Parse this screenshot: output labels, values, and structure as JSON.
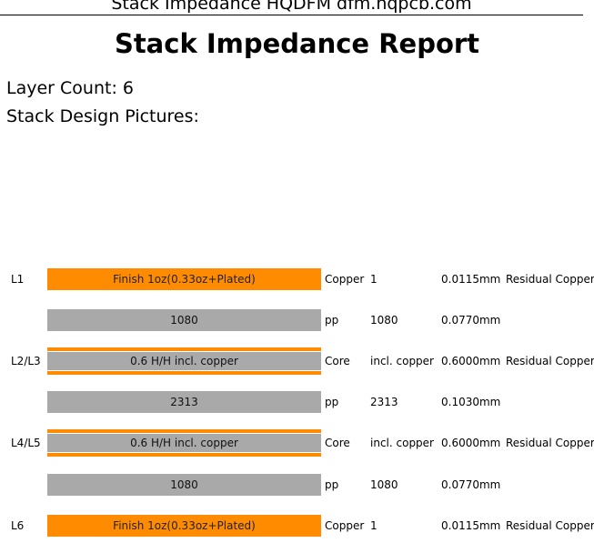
{
  "header": {
    "site_line": "Stack Impedance HQDFM dfm.hqpcb.com"
  },
  "report": {
    "title": "Stack Impedance Report",
    "layer_count": "Layer Count: 6",
    "pictures_label": "Stack Design Pictures:"
  },
  "stack": [
    {
      "label": "L1",
      "kind": "copper",
      "bar_text": "Finish 1oz(0.33oz+Plated)",
      "type": "Copper",
      "spec": "1",
      "thickness": "0.0115mm",
      "residual": "Residual Copper"
    },
    {
      "label": "",
      "kind": "pp",
      "bar_text": "1080",
      "type": "pp",
      "spec": "1080",
      "thickness": "0.0770mm",
      "residual": ""
    },
    {
      "label": "L2/L3",
      "kind": "core",
      "bar_text": "0.6 H/H incl. copper",
      "type": "Core",
      "spec": "incl. copper",
      "thickness": "0.6000mm",
      "residual": "Residual Copper"
    },
    {
      "label": "",
      "kind": "pp",
      "bar_text": "2313",
      "type": "pp",
      "spec": "2313",
      "thickness": "0.1030mm",
      "residual": ""
    },
    {
      "label": "L4/L5",
      "kind": "core",
      "bar_text": "0.6 H/H incl. copper",
      "type": "Core",
      "spec": "incl. copper",
      "thickness": "0.6000mm",
      "residual": "Residual Copper"
    },
    {
      "label": "",
      "kind": "pp",
      "bar_text": "1080",
      "type": "pp",
      "spec": "1080",
      "thickness": "0.0770mm",
      "residual": ""
    },
    {
      "label": "L6",
      "kind": "copper",
      "bar_text": "Finish 1oz(0.33oz+Plated)",
      "type": "Copper",
      "spec": "1",
      "thickness": "0.0115mm",
      "residual": "Residual Copper"
    }
  ],
  "colors": {
    "copper": "#ff8c00",
    "dielectric": "#a9a9a9"
  }
}
